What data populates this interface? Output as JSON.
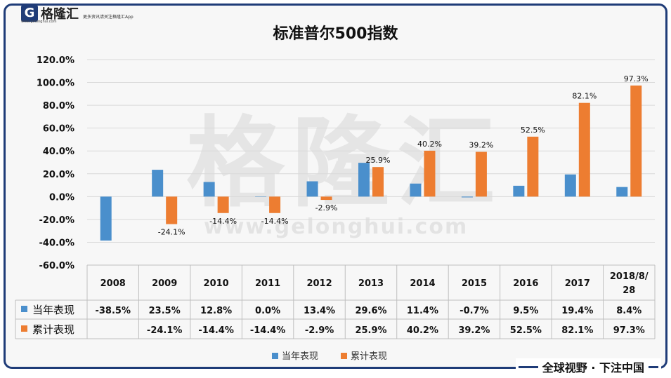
{
  "branding": {
    "logo_mark": "G",
    "logo_text": "格隆汇",
    "logo_url": "www.gelonghui.com",
    "header_note": "更多资讯请关注格隆汇App",
    "watermark": "格隆汇",
    "watermark_url": "www.gelonghui.com",
    "slogan": "全球视野 · 下注中国"
  },
  "colors": {
    "annual": "#4a8fcc",
    "cumulative": "#ed7d31",
    "frame": "#1f3c78"
  },
  "chart_data": {
    "type": "bar",
    "title": "标准普尔500指数",
    "categories": [
      "2008",
      "2009",
      "2010",
      "2011",
      "2012",
      "2013",
      "2014",
      "2015",
      "2016",
      "2017",
      "2018/8/28"
    ],
    "category_display": [
      [
        "2008"
      ],
      [
        "2009"
      ],
      [
        "2010"
      ],
      [
        "2011"
      ],
      [
        "2012"
      ],
      [
        "2013"
      ],
      [
        "2014"
      ],
      [
        "2015"
      ],
      [
        "2016"
      ],
      [
        "2017"
      ],
      [
        "2018/8/",
        "28"
      ]
    ],
    "yticks": [
      "120.0%",
      "100.0%",
      "80.0%",
      "60.0%",
      "40.0%",
      "20.0%",
      "0.0%",
      "-20.0%",
      "-40.0%",
      "-60.0%"
    ],
    "ylim": [
      -60,
      120
    ],
    "series": [
      {
        "name": "当年表现",
        "values": [
          -38.5,
          23.5,
          12.8,
          0.0,
          13.4,
          29.6,
          11.4,
          -0.7,
          9.5,
          19.4,
          8.4
        ],
        "table_labels": [
          "-38.5%",
          "23.5%",
          "12.8%",
          "0.0%",
          "13.4%",
          "29.6%",
          "11.4%",
          "-0.7%",
          "9.5%",
          "19.4%",
          "8.4%"
        ]
      },
      {
        "name": "累计表现",
        "values": [
          null,
          -24.1,
          -14.4,
          -14.4,
          -2.9,
          25.9,
          40.2,
          39.2,
          52.5,
          82.1,
          97.3
        ],
        "table_labels": [
          "",
          "-24.1%",
          "-14.4%",
          "-14.4%",
          "-2.9%",
          "25.9%",
          "40.2%",
          "39.2%",
          "52.5%",
          "82.1%",
          "97.3%"
        ],
        "data_labels": [
          "",
          "-24.1%",
          "-14.4%",
          "-14.4%",
          "-2.9%",
          "25.9%",
          "40.2%",
          "39.2%",
          "52.5%",
          "82.1%",
          "97.3%"
        ]
      }
    ],
    "legend_position": "bottom",
    "grid": true
  }
}
